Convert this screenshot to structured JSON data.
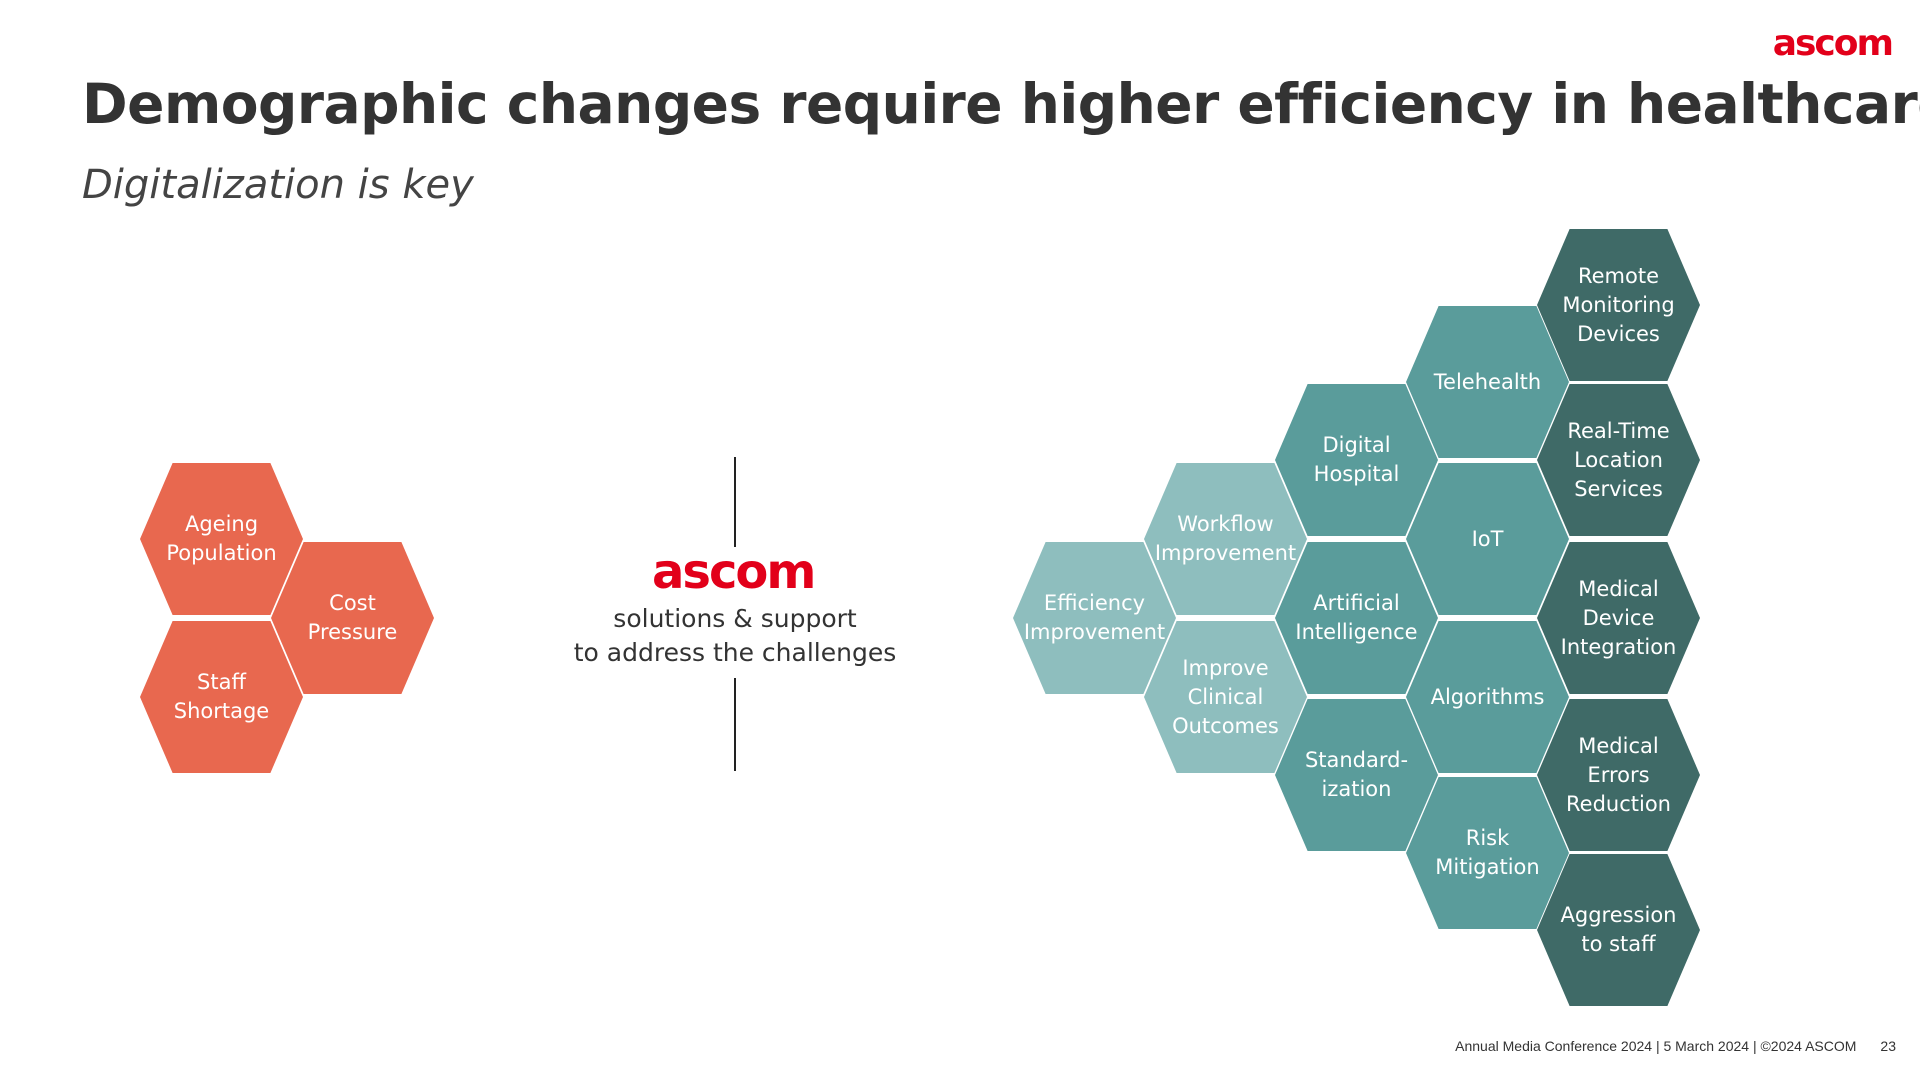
{
  "brand": {
    "name": "ascom",
    "color": "#e2001a"
  },
  "header": {
    "title": "Demographic changes require higher efficiency in healthcare",
    "subtitle": "Digitalization is key"
  },
  "center": {
    "logo": "ascom",
    "line1": "solutions & support",
    "line2": "to address the challenges"
  },
  "colors": {
    "challenge": "#e8684f",
    "light_teal": "#8ebebe",
    "mid_teal": "#5a9c9b",
    "dark_teal": "#3f6a67"
  },
  "challenges": [
    {
      "id": "ageing",
      "label": "Ageing\nPopulation"
    },
    {
      "id": "cost",
      "label": "Cost\nPressure"
    },
    {
      "id": "staff",
      "label": "Staff\nShortage"
    }
  ],
  "solutions": [
    {
      "id": "efficiency",
      "label": "Efficiency\nImprovement",
      "tone": "light_teal"
    },
    {
      "id": "workflow",
      "label": "Workflow\nImprovement",
      "tone": "light_teal"
    },
    {
      "id": "clinical",
      "label": "Improve\nClinical\nOutcomes",
      "tone": "light_teal"
    },
    {
      "id": "digital-hospital",
      "label": "Digital\nHospital",
      "tone": "mid_teal"
    },
    {
      "id": "ai",
      "label": "Artificial\nIntelligence",
      "tone": "mid_teal"
    },
    {
      "id": "standardization",
      "label": "Standard-\nization",
      "tone": "mid_teal"
    },
    {
      "id": "telehealth",
      "label": "Telehealth",
      "tone": "mid_teal"
    },
    {
      "id": "iot",
      "label": "IoT",
      "tone": "mid_teal"
    },
    {
      "id": "algorithms",
      "label": "Algorithms",
      "tone": "mid_teal"
    },
    {
      "id": "risk",
      "label": "Risk\nMitigation",
      "tone": "mid_teal"
    },
    {
      "id": "remote",
      "label": "Remote\nMonitoring\nDevices",
      "tone": "dark_teal"
    },
    {
      "id": "rtls",
      "label": "Real-Time\nLocation\nServices",
      "tone": "dark_teal"
    },
    {
      "id": "device-integration",
      "label": "Medical\nDevice\nIntegration",
      "tone": "dark_teal"
    },
    {
      "id": "errors",
      "label": "Medical\nErrors\nReduction",
      "tone": "dark_teal"
    },
    {
      "id": "aggression",
      "label": "Aggression\nto staff",
      "tone": "dark_teal"
    }
  ],
  "footer": {
    "text": "Annual Media Conference 2024 | 5 March 2024 | ©2024 ASCOM",
    "page": "23"
  }
}
